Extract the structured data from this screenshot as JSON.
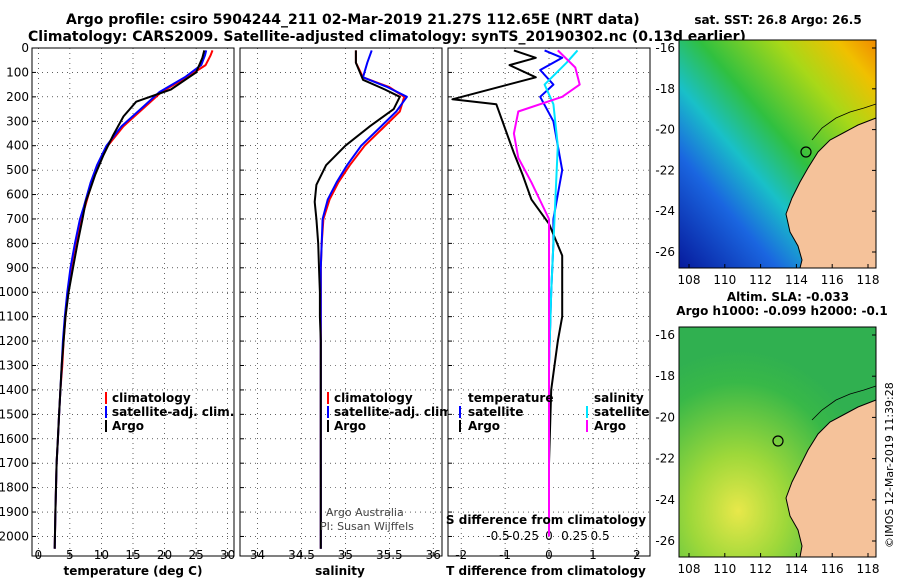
{
  "header": {
    "line1": "Argo profile: csiro 5904244_211 02-Mar-2019 21.27S 112.65E (NRT data)",
    "line2": "Climatology: CARS2009. Satellite-adjusted climatology: synTS_20190302.nc (0.13d earlier)"
  },
  "colors": {
    "argo": "#000000",
    "climatology": "#ff0000",
    "satellite": "#0000ff",
    "sat_salinity": "#00e5ff",
    "argo_salinity": "#ff00ff",
    "land": "#f5c29a"
  },
  "chart_data": [
    {
      "type": "line",
      "xlabel": "temperature (deg C)",
      "ylabel": "",
      "xlim": [
        -1,
        31
      ],
      "ylim": [
        2080,
        0
      ],
      "x_ticks": [
        "0",
        "5",
        "10",
        "15",
        "20",
        "25",
        "30"
      ],
      "y_ticks": [
        "0",
        "100",
        "200",
        "300",
        "400",
        "500",
        "600",
        "700",
        "800",
        "900",
        "1000",
        "1100",
        "1200",
        "1300",
        "1400",
        "1500",
        "1600",
        "1700",
        "1800",
        "1900",
        "2000"
      ],
      "legend": [
        "climatology",
        "satellite-adj. clim.",
        "Argo"
      ],
      "series": [
        {
          "name": "climatology",
          "x": [
            27.6,
            27.3,
            26.5,
            23.5,
            19.5,
            16.5,
            13.5,
            11.0,
            9.5,
            8.5,
            7.4,
            6.8,
            5.9,
            5.2,
            4.7,
            4.3,
            4.0,
            3.8,
            3.5,
            3.3,
            3.1,
            2.9,
            2.8,
            2.7,
            2.6
          ],
          "y": [
            10,
            30,
            70,
            120,
            180,
            250,
            320,
            400,
            480,
            550,
            650,
            700,
            800,
            900,
            1000,
            1100,
            1200,
            1300,
            1400,
            1500,
            1600,
            1700,
            1800,
            1900,
            2050
          ]
        },
        {
          "name": "satellite-adj. clim.",
          "x": [
            26.6,
            26.4,
            25.8,
            23.2,
            19.2,
            16.2,
            13.2,
            10.8,
            9.3,
            8.3,
            7.2,
            6.6,
            5.8,
            5.1,
            4.6,
            4.2,
            3.9,
            3.7,
            3.5,
            3.3,
            3.1,
            2.9,
            2.8,
            2.7,
            2.6
          ],
          "y": [
            10,
            30,
            70,
            120,
            180,
            250,
            320,
            400,
            480,
            550,
            650,
            700,
            800,
            900,
            1000,
            1100,
            1200,
            1300,
            1400,
            1500,
            1600,
            1700,
            1800,
            1900,
            2050
          ]
        },
        {
          "name": "Argo",
          "x": [
            26.3,
            26.0,
            25.0,
            21.0,
            15.5,
            13.5,
            11.8,
            10.3,
            9.0,
            8.2,
            7.5,
            7.0,
            6.2,
            5.5,
            4.8,
            4.3,
            4.0,
            3.7,
            3.5,
            3.3,
            3.1,
            2.9,
            2.8,
            2.7,
            2.6
          ],
          "y": [
            10,
            40,
            100,
            170,
            220,
            280,
            360,
            440,
            520,
            580,
            630,
            700,
            800,
            900,
            1000,
            1100,
            1200,
            1300,
            1400,
            1500,
            1600,
            1700,
            1800,
            1900,
            2050
          ]
        }
      ]
    },
    {
      "type": "line",
      "xlabel": "salinity",
      "ylabel": "",
      "xlim": [
        33.8,
        36.1
      ],
      "ylim": [
        2080,
        0
      ],
      "x_ticks": [
        "34",
        "34.5",
        "35",
        "35.5",
        "36"
      ],
      "legend": [
        "climatology",
        "satellite-adj. clim.",
        "Argo"
      ],
      "annotations": [
        "Argo Australia",
        "PI: Susan Wijffels"
      ],
      "series": [
        {
          "name": "climatology",
          "x": [
            35.12,
            35.12,
            35.2,
            35.5,
            35.67,
            35.62,
            35.42,
            35.22,
            35.05,
            34.92,
            34.82,
            34.75,
            34.73,
            34.72,
            34.72,
            34.72,
            34.72,
            34.72,
            34.72,
            34.72,
            34.72,
            34.72,
            34.72,
            34.72,
            34.72
          ],
          "y": [
            10,
            60,
            120,
            160,
            200,
            260,
            330,
            400,
            480,
            550,
            620,
            700,
            800,
            900,
            1000,
            1100,
            1200,
            1300,
            1400,
            1500,
            1600,
            1700,
            1800,
            1900,
            2050
          ]
        },
        {
          "name": "satellite-adj. clim.",
          "x": [
            35.3,
            35.25,
            35.2,
            35.48,
            35.7,
            35.58,
            35.38,
            35.18,
            35.02,
            34.9,
            34.8,
            34.74,
            34.73,
            34.72,
            34.72,
            34.72,
            34.72,
            34.72,
            34.72,
            34.72,
            34.72,
            34.72,
            34.72,
            34.72,
            34.72
          ],
          "y": [
            10,
            60,
            120,
            160,
            200,
            260,
            330,
            400,
            480,
            550,
            620,
            700,
            800,
            900,
            1000,
            1100,
            1200,
            1300,
            1400,
            1500,
            1600,
            1700,
            1800,
            1900,
            2050
          ]
        },
        {
          "name": "Argo",
          "x": [
            35.12,
            35.12,
            35.2,
            35.45,
            35.62,
            35.55,
            35.28,
            35.0,
            34.78,
            34.67,
            34.65,
            34.67,
            34.69,
            34.7,
            34.71,
            34.71,
            34.72,
            34.72,
            34.72,
            34.72,
            34.72,
            34.72,
            34.72,
            34.72,
            34.72
          ],
          "y": [
            10,
            60,
            130,
            170,
            200,
            250,
            320,
            400,
            480,
            560,
            630,
            700,
            800,
            900,
            1000,
            1100,
            1200,
            1300,
            1400,
            1500,
            1600,
            1700,
            1800,
            1900,
            2050
          ]
        }
      ]
    },
    {
      "type": "line",
      "xlabel": "T difference from climatology",
      "x2label": "S difference from climatology",
      "xlim": [
        -2.3,
        2.3
      ],
      "ylim": [
        2080,
        0
      ],
      "x_ticks": [
        "-2",
        "-1",
        "0",
        "1",
        "2"
      ],
      "x2_ticks": [
        "-0.5",
        "-0.25",
        "0",
        "0.25",
        "0.5"
      ],
      "legend_groups": [
        {
          "title": "temperature",
          "entries": [
            "satellite",
            "Argo"
          ]
        },
        {
          "title": "salinity",
          "entries": [
            "satellite",
            "Argo"
          ]
        }
      ],
      "series": [
        {
          "name": "temperature satellite",
          "x": [
            -0.1,
            0.3,
            -0.2,
            0.1,
            -0.2,
            0.1,
            0.2,
            0.3,
            0.2,
            0.1,
            0.1,
            0.05,
            0.0,
            0.0,
            0.0
          ],
          "y": [
            10,
            40,
            90,
            150,
            200,
            300,
            400,
            500,
            600,
            700,
            800,
            1000,
            1300,
            1600,
            2000
          ]
        },
        {
          "name": "temperature Argo",
          "x": [
            -0.8,
            -0.3,
            -0.9,
            -0.3,
            -2.2,
            -1.2,
            -1.0,
            -0.8,
            -0.6,
            -0.4,
            0.0,
            0.3,
            0.3,
            0.2,
            0.05,
            0.0,
            0.0
          ],
          "y": [
            10,
            40,
            70,
            120,
            210,
            230,
            330,
            430,
            520,
            620,
            720,
            850,
            1100,
            1200,
            1400,
            1700,
            2000
          ]
        },
        {
          "name": "salinity satellite",
          "x": [
            0.65,
            0.4,
            -0.1,
            0.1,
            0.2,
            0.15,
            0.1,
            0.05,
            0.0,
            0.0,
            0.0
          ],
          "y": [
            10,
            60,
            150,
            230,
            400,
            600,
            800,
            1000,
            1300,
            1600,
            2000
          ]
        },
        {
          "name": "salinity Argo",
          "x": [
            0.2,
            0.6,
            0.7,
            0.3,
            -0.7,
            -0.8,
            -0.7,
            -0.4,
            0.0,
            0.0,
            0.0,
            0.0
          ],
          "y": [
            10,
            80,
            150,
            200,
            260,
            350,
            450,
            550,
            700,
            1000,
            1500,
            2000
          ]
        }
      ]
    }
  ],
  "maps": [
    {
      "title": "sat. SST: 26.8 Argo: 26.5",
      "x_ticks": [
        "108",
        "110",
        "112",
        "114",
        "116",
        "118"
      ],
      "y_ticks": [
        "-16",
        "-18",
        "-20",
        "-22",
        "-24",
        "-26"
      ]
    },
    {
      "title_line1": "Altim. SLA: -0.033",
      "title_line2": "Argo h1000: -0.099 h2000: -0.1",
      "x_ticks": [
        "108",
        "110",
        "112",
        "114",
        "116",
        "118"
      ],
      "y_ticks": [
        "-16",
        "-18",
        "-20",
        "-22",
        "-24",
        "-26"
      ]
    }
  ],
  "footer": {
    "credit": "©IMOS 12-Mar-2019 11:39:28"
  }
}
